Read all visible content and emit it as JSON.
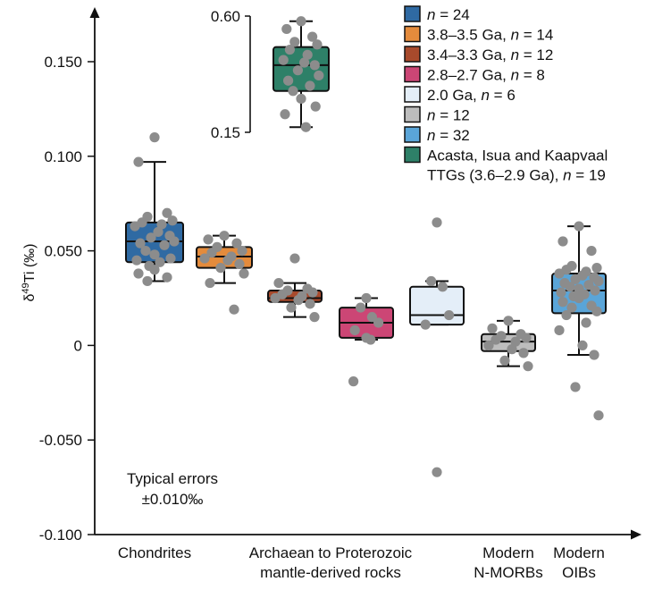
{
  "chart_data": {
    "type": "box",
    "ylabel_main": "δ",
    "ylabel_sup": "49",
    "ylabel_rest": "Ti (‰)",
    "ylim": [
      -0.1,
      0.15
    ],
    "yticks": [
      {
        "value": 0.15,
        "label": "0.150"
      },
      {
        "value": 0.1,
        "label": "0.100"
      },
      {
        "value": 0.05,
        "label": "0.050"
      },
      {
        "value": 0.0,
        "label": "0"
      },
      {
        "value": -0.05,
        "label": "-0.050"
      },
      {
        "value": -0.1,
        "label": "-0.100"
      }
    ],
    "categories": [
      {
        "label_lines": [
          "Chondrites"
        ],
        "anchor": 1
      },
      {
        "label_lines": [
          "Archaean to Proterozoic",
          "mantle-derived rocks"
        ],
        "anchor": 3.5
      },
      {
        "label_lines": [
          "Modern",
          "N-MORBs"
        ],
        "anchor": 6
      },
      {
        "label_lines": [
          "Modern",
          "OIBs"
        ],
        "anchor": 7
      }
    ],
    "series": [
      {
        "legend": {
          "prefix": "",
          "italic": "n",
          "suffix": " = 24"
        },
        "color": "#2f6aa3",
        "box": {
          "q1": 0.044,
          "median": 0.055,
          "q3": 0.065,
          "whisker_low": 0.034,
          "whisker_high": 0.097
        },
        "points": [
          0.11,
          0.097,
          0.07,
          0.068,
          0.066,
          0.065,
          0.064,
          0.063,
          0.06,
          0.058,
          0.057,
          0.055,
          0.054,
          0.053,
          0.05,
          0.048,
          0.046,
          0.045,
          0.044,
          0.042,
          0.04,
          0.038,
          0.036,
          0.034
        ]
      },
      {
        "legend": {
          "prefix": "3.8–3.5 Ga, ",
          "italic": "n",
          "suffix": " = 14"
        },
        "color": "#e48b3c",
        "box": {
          "q1": 0.041,
          "median": 0.047,
          "q3": 0.052,
          "whisker_low": 0.033,
          "whisker_high": 0.058
        },
        "points": [
          0.058,
          0.056,
          0.054,
          0.052,
          0.05,
          0.049,
          0.047,
          0.046,
          0.045,
          0.043,
          0.041,
          0.038,
          0.033,
          0.019
        ]
      },
      {
        "legend": {
          "prefix": "3.4–3.3 Ga, ",
          "italic": "n",
          "suffix": " = 12"
        },
        "color": "#a84a2c",
        "box": {
          "q1": 0.023,
          "median": 0.025,
          "q3": 0.029,
          "whisker_low": 0.015,
          "whisker_high": 0.033
        },
        "points": [
          0.046,
          0.033,
          0.03,
          0.029,
          0.028,
          0.027,
          0.026,
          0.025,
          0.024,
          0.022,
          0.02,
          0.015
        ]
      },
      {
        "legend": {
          "prefix": "2.8–2.7 Ga, ",
          "italic": "n",
          "suffix": " = 8"
        },
        "color": "#cc4675",
        "box": {
          "q1": 0.004,
          "median": 0.012,
          "q3": 0.02,
          "whisker_low": 0.003,
          "whisker_high": 0.025
        },
        "points": [
          0.025,
          0.02,
          0.015,
          0.012,
          0.008,
          0.004,
          0.003,
          -0.019
        ]
      },
      {
        "legend": {
          "prefix": "2.0 Ga, ",
          "italic": "n",
          "suffix": " = 6"
        },
        "color": "#e4eef8",
        "box": {
          "q1": 0.011,
          "median": 0.016,
          "q3": 0.031,
          "whisker_low": 0.011,
          "whisker_high": 0.034
        },
        "points": [
          0.065,
          0.034,
          0.031,
          0.016,
          0.011,
          -0.067
        ]
      },
      {
        "legend": {
          "prefix": "",
          "italic": "n",
          "suffix": " = 12"
        },
        "color": "#bdbdbd",
        "box": {
          "q1": -0.003,
          "median": 0.002,
          "q3": 0.006,
          "whisker_low": -0.011,
          "whisker_high": 0.013
        },
        "points": [
          0.013,
          0.009,
          0.006,
          0.005,
          0.004,
          0.003,
          0.002,
          0.0,
          -0.002,
          -0.004,
          -0.008,
          -0.011
        ]
      },
      {
        "legend": {
          "prefix": "",
          "italic": "n",
          "suffix": " = 32"
        },
        "color": "#5aa5d8",
        "box": {
          "q1": 0.017,
          "median": 0.029,
          "q3": 0.038,
          "whisker_low": -0.005,
          "whisker_high": 0.063
        },
        "points": [
          0.063,
          0.055,
          0.05,
          0.042,
          0.041,
          0.04,
          0.039,
          0.038,
          0.037,
          0.036,
          0.035,
          0.034,
          0.033,
          0.032,
          0.031,
          0.03,
          0.029,
          0.028,
          0.027,
          0.026,
          0.025,
          0.023,
          0.021,
          0.02,
          0.018,
          0.016,
          0.012,
          0.008,
          0.0,
          -0.005,
          -0.022,
          -0.037
        ]
      }
    ],
    "inset": {
      "ylim": [
        0.15,
        0.6
      ],
      "ticks": [
        {
          "value": 0.6,
          "label": "0.60"
        },
        {
          "value": 0.15,
          "label": "0.15"
        }
      ],
      "legend": {
        "lines": [
          [
            {
              "text": "Acasta, Isua and Kaapvaal",
              "italic": false
            }
          ],
          [
            {
              "text": "TTGs (3.6–2.9 Ga), ",
              "italic": false
            },
            {
              "text": "n",
              "italic": true
            },
            {
              "text": " = 19",
              "italic": false
            }
          ]
        ]
      },
      "color": "#2e8068",
      "box": {
        "q1": 0.31,
        "median": 0.41,
        "q3": 0.48,
        "whisker_low": 0.17,
        "whisker_high": 0.58
      },
      "points": [
        0.58,
        0.55,
        0.52,
        0.5,
        0.49,
        0.47,
        0.45,
        0.43,
        0.42,
        0.41,
        0.39,
        0.37,
        0.35,
        0.33,
        0.31,
        0.28,
        0.25,
        0.22,
        0.17
      ]
    },
    "annotation": [
      "Typical errors",
      "±0.010‰"
    ]
  }
}
